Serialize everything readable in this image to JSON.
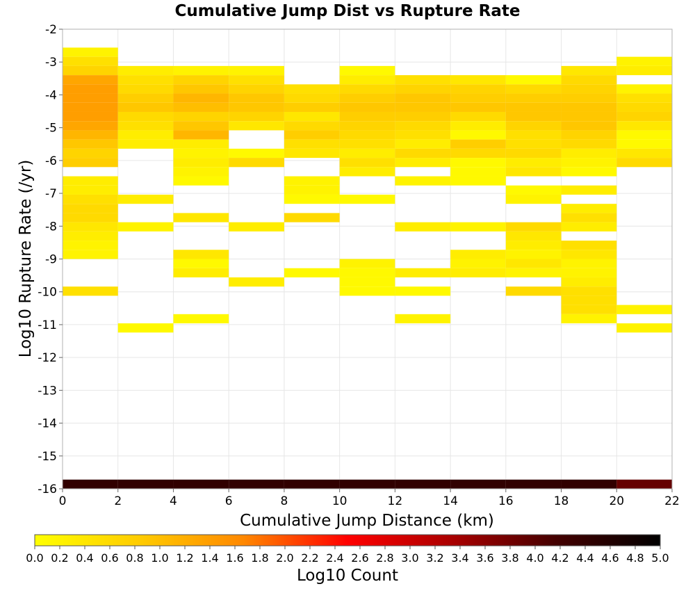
{
  "chart_data": {
    "type": "heatmap",
    "title": "Cumulative Jump Dist vs Rupture Rate",
    "xlabel": "Cumulative Jump Distance (km)",
    "ylabel": "Log10 Rupture Rate (/yr)",
    "xlim": [
      0,
      22
    ],
    "ylim": [
      -16,
      -2
    ],
    "x_ticks": [
      "0",
      "2",
      "4",
      "6",
      "8",
      "10",
      "12",
      "14",
      "16",
      "18",
      "20",
      "22"
    ],
    "y_ticks": [
      "-2",
      "-3",
      "-4",
      "-5",
      "-6",
      "-7",
      "-8",
      "-9",
      "-10",
      "-11",
      "-12",
      "-13",
      "-14",
      "-15",
      "-16"
    ],
    "bin_width_x": 2,
    "bin_height_y": 0.28,
    "colorbar": {
      "label": "Log10 Count",
      "range": [
        0,
        5
      ],
      "ticks": [
        "0.0",
        "0.2",
        "0.4",
        "0.6",
        "0.8",
        "1.0",
        "1.2",
        "1.4",
        "1.6",
        "1.8",
        "2.0",
        "2.2",
        "2.4",
        "2.6",
        "2.8",
        "3.0",
        "3.2",
        "3.4",
        "3.6",
        "3.8",
        "4.0",
        "4.2",
        "4.4",
        "4.6",
        "4.8",
        "5.0"
      ],
      "colors": [
        "#ffff00",
        "#ffcc00",
        "#ff8800",
        "#ff0000",
        "#aa0000",
        "#440000",
        "#000000"
      ]
    },
    "grid": true,
    "columns": [
      {
        "x0": 0,
        "cells": [
          [
            -2.84,
            0.2
          ],
          [
            -3.12,
            0.5
          ],
          [
            -3.4,
            0.7
          ],
          [
            -3.68,
            1.3
          ],
          [
            -3.96,
            1.4
          ],
          [
            -4.24,
            1.4
          ],
          [
            -4.52,
            1.4
          ],
          [
            -4.8,
            1.4
          ],
          [
            -5.08,
            1.3
          ],
          [
            -5.36,
            1.1
          ],
          [
            -5.64,
            0.9
          ],
          [
            -5.92,
            0.7
          ],
          [
            -6.2,
            0.8
          ],
          [
            -6.76,
            0.3
          ],
          [
            -7.04,
            0.3
          ],
          [
            -7.32,
            0.5
          ],
          [
            -7.6,
            0.6
          ],
          [
            -7.88,
            0.6
          ],
          [
            -8.16,
            0.4
          ],
          [
            -8.44,
            0.3
          ],
          [
            -8.72,
            0.2
          ],
          [
            -9.0,
            0.2
          ],
          [
            -10.12,
            0.5
          ],
          [
            -16.0,
            4.4
          ]
        ]
      },
      {
        "x0": 2,
        "cells": [
          [
            -3.4,
            0.3
          ],
          [
            -3.68,
            0.5
          ],
          [
            -3.96,
            0.6
          ],
          [
            -4.24,
            0.8
          ],
          [
            -4.52,
            0.9
          ],
          [
            -4.8,
            0.6
          ],
          [
            -5.08,
            0.5
          ],
          [
            -5.36,
            0.3
          ],
          [
            -5.64,
            0.3
          ],
          [
            -7.32,
            0.3
          ],
          [
            -8.16,
            0.2
          ],
          [
            -11.24,
            0.1
          ],
          [
            -16.0,
            4.4
          ]
        ]
      },
      {
        "x0": 4,
        "cells": [
          [
            -3.4,
            0.2
          ],
          [
            -3.68,
            0.7
          ],
          [
            -3.96,
            0.9
          ],
          [
            -4.24,
            1.1
          ],
          [
            -4.52,
            1.0
          ],
          [
            -4.8,
            0.7
          ],
          [
            -5.08,
            0.9
          ],
          [
            -5.36,
            1.1
          ],
          [
            -5.64,
            0.3
          ],
          [
            -5.92,
            0.2
          ],
          [
            -6.2,
            0.3
          ],
          [
            -6.48,
            0.2
          ],
          [
            -6.76,
            0.1
          ],
          [
            -7.88,
            0.4
          ],
          [
            -9.0,
            0.4
          ],
          [
            -9.28,
            0.1
          ],
          [
            -9.56,
            0.3
          ],
          [
            -10.96,
            0.1
          ],
          [
            -16.0,
            4.4
          ]
        ]
      },
      {
        "x0": 6,
        "cells": [
          [
            -3.4,
            0.2
          ],
          [
            -3.68,
            0.5
          ],
          [
            -3.96,
            0.7
          ],
          [
            -4.24,
            0.9
          ],
          [
            -4.52,
            0.9
          ],
          [
            -4.8,
            0.7
          ],
          [
            -5.08,
            0.4
          ],
          [
            -5.92,
            0.1
          ],
          [
            -6.2,
            0.6
          ],
          [
            -8.16,
            0.3
          ],
          [
            -9.84,
            0.3
          ],
          [
            -16.0,
            4.4
          ]
        ]
      },
      {
        "x0": 8,
        "cells": [
          [
            -3.96,
            0.5
          ],
          [
            -4.24,
            0.6
          ],
          [
            -4.52,
            0.8
          ],
          [
            -4.8,
            0.4
          ],
          [
            -5.08,
            0.6
          ],
          [
            -5.36,
            0.8
          ],
          [
            -5.64,
            0.5
          ],
          [
            -5.92,
            0.4
          ],
          [
            -6.76,
            0.2
          ],
          [
            -7.04,
            0.2
          ],
          [
            -7.32,
            0.1
          ],
          [
            -7.88,
            0.6
          ],
          [
            -9.56,
            0.1
          ],
          [
            -16.0,
            4.4
          ]
        ]
      },
      {
        "x0": 10,
        "cells": [
          [
            -3.4,
            0.1
          ],
          [
            -3.68,
            0.3
          ],
          [
            -3.96,
            0.6
          ],
          [
            -4.24,
            0.8
          ],
          [
            -4.52,
            0.9
          ],
          [
            -4.8,
            0.8
          ],
          [
            -5.08,
            0.7
          ],
          [
            -5.36,
            0.6
          ],
          [
            -5.64,
            0.5
          ],
          [
            -5.92,
            0.3
          ],
          [
            -6.2,
            0.5
          ],
          [
            -6.48,
            0.3
          ],
          [
            -7.32,
            0.1
          ],
          [
            -9.28,
            0.2
          ],
          [
            -9.56,
            0.1
          ],
          [
            -9.84,
            0.1
          ],
          [
            -10.12,
            0.1
          ],
          [
            -16.0,
            4.4
          ]
        ]
      },
      {
        "x0": 12,
        "cells": [
          [
            -3.68,
            0.5
          ],
          [
            -3.96,
            0.7
          ],
          [
            -4.24,
            0.9
          ],
          [
            -4.52,
            0.9
          ],
          [
            -4.8,
            0.8
          ],
          [
            -5.08,
            0.6
          ],
          [
            -5.36,
            0.5
          ],
          [
            -5.64,
            0.3
          ],
          [
            -5.92,
            0.6
          ],
          [
            -6.2,
            0.3
          ],
          [
            -6.76,
            0.2
          ],
          [
            -8.16,
            0.3
          ],
          [
            -9.56,
            0.3
          ],
          [
            -10.12,
            0.1
          ],
          [
            -10.96,
            0.2
          ],
          [
            -16.0,
            4.4
          ]
        ]
      },
      {
        "x0": 14,
        "cells": [
          [
            -3.68,
            0.4
          ],
          [
            -3.96,
            0.7
          ],
          [
            -4.24,
            0.8
          ],
          [
            -4.52,
            0.9
          ],
          [
            -4.8,
            0.6
          ],
          [
            -5.08,
            0.3
          ],
          [
            -5.36,
            0.1
          ],
          [
            -5.64,
            0.8
          ],
          [
            -5.92,
            0.6
          ],
          [
            -6.2,
            0.1
          ],
          [
            -6.48,
            0.1
          ],
          [
            -6.76,
            0.1
          ],
          [
            -8.16,
            0.2
          ],
          [
            -9.0,
            0.3
          ],
          [
            -9.28,
            0.2
          ],
          [
            -9.56,
            0.3
          ],
          [
            -16.0,
            4.4
          ]
        ]
      },
      {
        "x0": 16,
        "cells": [
          [
            -3.68,
            0.1
          ],
          [
            -3.96,
            0.6
          ],
          [
            -4.24,
            0.8
          ],
          [
            -4.52,
            0.9
          ],
          [
            -4.8,
            0.9
          ],
          [
            -5.08,
            0.7
          ],
          [
            -5.36,
            0.5
          ],
          [
            -5.64,
            0.5
          ],
          [
            -5.92,
            0.6
          ],
          [
            -6.2,
            0.3
          ],
          [
            -6.48,
            0.4
          ],
          [
            -7.04,
            0.1
          ],
          [
            -7.32,
            0.2
          ],
          [
            -8.16,
            0.6
          ],
          [
            -8.44,
            0.4
          ],
          [
            -8.72,
            0.3
          ],
          [
            -9.0,
            0.2
          ],
          [
            -9.28,
            0.4
          ],
          [
            -9.56,
            0.2
          ],
          [
            -10.12,
            0.6
          ],
          [
            -16.0,
            4.4
          ]
        ]
      },
      {
        "x0": 18,
        "cells": [
          [
            -3.4,
            0.4
          ],
          [
            -3.68,
            0.6
          ],
          [
            -3.96,
            0.7
          ],
          [
            -4.24,
            0.8
          ],
          [
            -4.52,
            0.9
          ],
          [
            -4.8,
            0.9
          ],
          [
            -5.08,
            0.9
          ],
          [
            -5.36,
            0.7
          ],
          [
            -5.64,
            0.6
          ],
          [
            -5.92,
            0.3
          ],
          [
            -6.2,
            0.2
          ],
          [
            -6.48,
            0.1
          ],
          [
            -7.04,
            0.3
          ],
          [
            -7.6,
            0.3
          ],
          [
            -7.88,
            0.5
          ],
          [
            -8.16,
            0.3
          ],
          [
            -8.72,
            0.5
          ],
          [
            -9.0,
            0.4
          ],
          [
            -9.28,
            0.2
          ],
          [
            -9.56,
            0.2
          ],
          [
            -9.84,
            0.3
          ],
          [
            -10.12,
            0.5
          ],
          [
            -10.4,
            0.5
          ],
          [
            -10.68,
            0.5
          ],
          [
            -10.96,
            0.2
          ],
          [
            -16.0,
            4.4
          ]
        ]
      },
      {
        "x0": 20,
        "cells": [
          [
            -3.12,
            0.2
          ],
          [
            -3.4,
            0.3
          ],
          [
            -3.96,
            0.2
          ],
          [
            -4.24,
            0.5
          ],
          [
            -4.52,
            0.6
          ],
          [
            -4.8,
            0.7
          ],
          [
            -5.08,
            0.4
          ],
          [
            -5.36,
            0.1
          ],
          [
            -5.64,
            0.1
          ],
          [
            -5.92,
            0.4
          ],
          [
            -6.2,
            0.6
          ],
          [
            -10.68,
            0.2
          ],
          [
            -11.24,
            0.2
          ],
          [
            -16.0,
            3.9
          ]
        ]
      }
    ]
  }
}
